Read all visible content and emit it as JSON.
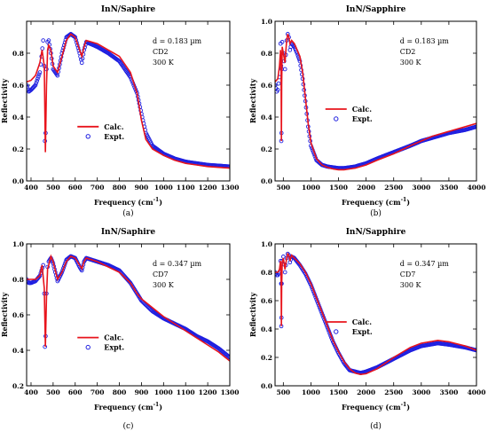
{
  "chart_data": [
    {
      "id": "a",
      "type": "line",
      "title": "InN/Saphire",
      "xlabel": "Frequency (cm",
      "xlabel_sup": "-1",
      "xlabel_end": ")",
      "ylabel": "Reflectivity",
      "xlim": [
        380,
        1300
      ],
      "ylim": [
        0,
        1.0
      ],
      "xticks": [
        400,
        500,
        600,
        700,
        800,
        900,
        1000,
        1100,
        1200,
        1300
      ],
      "yticks": [
        0,
        0.2,
        0.4,
        0.6,
        0.8
      ],
      "annotations": [
        "d = 0.183 µm",
        "CD2",
        "300 K"
      ],
      "legend": [
        "Calc.",
        "Expt."
      ],
      "caption": "(a)",
      "series": [
        {
          "name": "Calc.",
          "color": "#e8141c",
          "style": "line",
          "x": [
            380,
            400,
            420,
            440,
            450,
            460,
            465,
            470,
            475,
            480,
            490,
            500,
            520,
            540,
            560,
            580,
            600,
            620,
            630,
            640,
            650,
            700,
            750,
            800,
            850,
            880,
            900,
            920,
            950,
            1000,
            1050,
            1100,
            1150,
            1200,
            1250,
            1300
          ],
          "y": [
            0.62,
            0.63,
            0.66,
            0.74,
            0.82,
            0.72,
            0.18,
            0.6,
            0.82,
            0.85,
            0.82,
            0.72,
            0.68,
            0.78,
            0.88,
            0.92,
            0.9,
            0.82,
            0.78,
            0.84,
            0.88,
            0.86,
            0.82,
            0.78,
            0.68,
            0.55,
            0.38,
            0.26,
            0.2,
            0.16,
            0.13,
            0.11,
            0.1,
            0.09,
            0.085,
            0.08
          ]
        },
        {
          "name": "Expt.",
          "color": "#1f1fe0",
          "style": "markers-dense",
          "x": [
            380,
            390,
            400,
            420,
            440,
            455,
            460,
            463,
            466,
            470,
            475,
            480,
            490,
            500,
            520,
            540,
            560,
            580,
            600,
            620,
            630,
            640,
            650,
            700,
            750,
            800,
            850,
            880,
            900,
            920,
            950,
            1000,
            1050,
            1100,
            1150,
            1200,
            1250,
            1300
          ],
          "y": [
            0.6,
            0.56,
            0.57,
            0.6,
            0.68,
            0.88,
            0.72,
            0.25,
            0.3,
            0.7,
            0.87,
            0.88,
            0.8,
            0.7,
            0.66,
            0.8,
            0.9,
            0.92,
            0.9,
            0.8,
            0.74,
            0.82,
            0.87,
            0.84,
            0.8,
            0.75,
            0.65,
            0.55,
            0.42,
            0.3,
            0.22,
            0.17,
            0.14,
            0.12,
            0.11,
            0.1,
            0.095,
            0.09
          ]
        }
      ]
    },
    {
      "id": "b",
      "type": "line",
      "title": "InN/Sapphire",
      "xlabel": "Frequency (cm",
      "xlabel_sup": "-1",
      "xlabel_end": ")",
      "ylabel": "Reflectivity",
      "xlim": [
        350,
        4000
      ],
      "ylim": [
        0,
        1.0
      ],
      "xticks": [
        500,
        1000,
        1500,
        2000,
        2500,
        3000,
        3500,
        4000
      ],
      "yticks": [
        0,
        0.2,
        0.4,
        0.6,
        0.8,
        1.0
      ],
      "annotations": [
        "d = 0.183 µm",
        "CD2",
        "300 K"
      ],
      "legend": [
        "Calc.",
        "Expt."
      ],
      "caption": "(b)",
      "series": [
        {
          "name": "Calc.",
          "color": "#e8141c",
          "style": "line",
          "x": [
            350,
            400,
            430,
            450,
            460,
            465,
            470,
            480,
            500,
            530,
            560,
            580,
            600,
            620,
            650,
            700,
            750,
            800,
            850,
            900,
            950,
            1000,
            1100,
            1200,
            1300,
            1400,
            1500,
            1600,
            1700,
            1800,
            2000,
            2200,
            2500,
            2800,
            3000,
            3200,
            3500,
            3800,
            4000
          ],
          "y": [
            0.62,
            0.64,
            0.72,
            0.82,
            0.68,
            0.25,
            0.6,
            0.84,
            0.8,
            0.74,
            0.88,
            0.92,
            0.9,
            0.86,
            0.88,
            0.86,
            0.82,
            0.78,
            0.68,
            0.52,
            0.36,
            0.24,
            0.14,
            0.1,
            0.085,
            0.075,
            0.07,
            0.07,
            0.075,
            0.08,
            0.1,
            0.13,
            0.17,
            0.22,
            0.25,
            0.28,
            0.31,
            0.34,
            0.36
          ]
        },
        {
          "name": "Expt.",
          "color": "#1f1fe0",
          "style": "markers-dense",
          "x": [
            350,
            380,
            400,
            430,
            450,
            460,
            463,
            466,
            470,
            480,
            500,
            530,
            560,
            580,
            600,
            620,
            650,
            700,
            750,
            800,
            850,
            900,
            950,
            1000,
            1100,
            1200,
            1300,
            1400,
            1500,
            1600,
            1700,
            1800,
            2000,
            2200,
            2500,
            2800,
            3000,
            3200,
            3500,
            3800,
            4000
          ],
          "y": [
            0.6,
            0.56,
            0.57,
            0.65,
            0.86,
            0.72,
            0.25,
            0.3,
            0.7,
            0.87,
            0.8,
            0.7,
            0.88,
            0.92,
            0.9,
            0.82,
            0.86,
            0.84,
            0.8,
            0.75,
            0.64,
            0.5,
            0.34,
            0.22,
            0.13,
            0.1,
            0.09,
            0.085,
            0.08,
            0.08,
            0.085,
            0.09,
            0.11,
            0.14,
            0.18,
            0.22,
            0.25,
            0.27,
            0.3,
            0.32,
            0.34
          ]
        }
      ]
    },
    {
      "id": "c",
      "type": "line",
      "title": "InN/Saphire",
      "xlabel": "Frequency (cm",
      "xlabel_sup": "-1",
      "xlabel_end": ")",
      "ylabel": "Reflectivity",
      "xlim": [
        380,
        1300
      ],
      "ylim": [
        0.2,
        1.0
      ],
      "xticks": [
        400,
        500,
        600,
        700,
        800,
        900,
        1000,
        1100,
        1200,
        1300
      ],
      "yticks": [
        0.2,
        0.4,
        0.6,
        0.8,
        1.0
      ],
      "annotations": [
        "d = 0.347 µm",
        "CD7",
        "300 K"
      ],
      "legend": [
        "Calc.",
        "Expt."
      ],
      "caption": "(c)",
      "series": [
        {
          "name": "Calc.",
          "color": "#e8141c",
          "style": "line",
          "x": [
            380,
            400,
            420,
            440,
            450,
            460,
            465,
            470,
            475,
            480,
            490,
            500,
            520,
            540,
            560,
            580,
            600,
            620,
            630,
            640,
            650,
            700,
            750,
            800,
            850,
            880,
            900,
            950,
            1000,
            1050,
            1100,
            1150,
            1200,
            1250,
            1300
          ],
          "y": [
            0.8,
            0.8,
            0.8,
            0.82,
            0.88,
            0.75,
            0.42,
            0.7,
            0.86,
            0.88,
            0.93,
            0.9,
            0.8,
            0.84,
            0.9,
            0.93,
            0.92,
            0.88,
            0.86,
            0.9,
            0.92,
            0.9,
            0.87,
            0.84,
            0.78,
            0.72,
            0.69,
            0.64,
            0.59,
            0.55,
            0.51,
            0.47,
            0.43,
            0.39,
            0.34
          ]
        },
        {
          "name": "Expt.",
          "color": "#1f1fe0",
          "style": "markers-dense",
          "x": [
            380,
            390,
            400,
            420,
            440,
            455,
            460,
            463,
            466,
            470,
            475,
            480,
            490,
            500,
            520,
            540,
            560,
            580,
            600,
            620,
            630,
            640,
            650,
            700,
            750,
            800,
            850,
            880,
            900,
            950,
            1000,
            1050,
            1100,
            1150,
            1200,
            1250,
            1300
          ],
          "y": [
            0.8,
            0.78,
            0.78,
            0.79,
            0.82,
            0.88,
            0.72,
            0.42,
            0.48,
            0.72,
            0.87,
            0.9,
            0.92,
            0.89,
            0.79,
            0.84,
            0.91,
            0.93,
            0.92,
            0.87,
            0.85,
            0.9,
            0.92,
            0.9,
            0.88,
            0.85,
            0.78,
            0.72,
            0.68,
            0.62,
            0.58,
            0.55,
            0.52,
            0.48,
            0.45,
            0.41,
            0.36
          ]
        }
      ]
    },
    {
      "id": "d",
      "type": "line",
      "title": "InN/Sapphire",
      "xlabel": "Frequency (cm",
      "xlabel_sup": "-1",
      "xlabel_end": ")",
      "ylabel": "Reflectivity",
      "xlim": [
        350,
        4000
      ],
      "ylim": [
        0,
        1.0
      ],
      "xticks": [
        500,
        1000,
        1500,
        2000,
        2500,
        3000,
        3500,
        4000
      ],
      "yticks": [
        0,
        0.2,
        0.4,
        0.6,
        0.8,
        1.0
      ],
      "annotations": [
        "d = 0.347 µm",
        "CD7",
        "300 K"
      ],
      "legend": [
        "Calc.",
        "Expt."
      ],
      "caption": "(d)",
      "series": [
        {
          "name": "Calc.",
          "color": "#e8141c",
          "style": "line",
          "x": [
            350,
            400,
            430,
            450,
            460,
            465,
            470,
            480,
            500,
            530,
            560,
            580,
            600,
            620,
            650,
            700,
            800,
            900,
            1000,
            1100,
            1200,
            1300,
            1400,
            1500,
            1600,
            1700,
            1800,
            1900,
            2000,
            2200,
            2500,
            2800,
            3000,
            3300,
            3500,
            3800,
            4000
          ],
          "y": [
            0.8,
            0.8,
            0.82,
            0.88,
            0.75,
            0.42,
            0.7,
            0.87,
            0.9,
            0.82,
            0.9,
            0.93,
            0.92,
            0.88,
            0.92,
            0.9,
            0.86,
            0.8,
            0.72,
            0.62,
            0.52,
            0.42,
            0.32,
            0.24,
            0.17,
            0.12,
            0.09,
            0.08,
            0.085,
            0.12,
            0.2,
            0.27,
            0.3,
            0.32,
            0.31,
            0.28,
            0.25
          ]
        },
        {
          "name": "Expt.",
          "color": "#1f1fe0",
          "style": "markers-dense",
          "x": [
            350,
            380,
            400,
            430,
            450,
            460,
            463,
            466,
            470,
            480,
            500,
            530,
            560,
            580,
            600,
            620,
            650,
            700,
            800,
            900,
            1000,
            1100,
            1200,
            1300,
            1400,
            1500,
            1600,
            1700,
            1800,
            1900,
            2000,
            2200,
            2500,
            2800,
            3000,
            3300,
            3500,
            3800,
            4000
          ],
          "y": [
            0.8,
            0.78,
            0.78,
            0.8,
            0.88,
            0.72,
            0.42,
            0.48,
            0.72,
            0.88,
            0.91,
            0.8,
            0.9,
            0.93,
            0.92,
            0.87,
            0.91,
            0.9,
            0.85,
            0.79,
            0.71,
            0.61,
            0.51,
            0.41,
            0.31,
            0.23,
            0.16,
            0.11,
            0.1,
            0.09,
            0.1,
            0.13,
            0.19,
            0.25,
            0.28,
            0.3,
            0.29,
            0.27,
            0.25
          ]
        }
      ]
    }
  ]
}
